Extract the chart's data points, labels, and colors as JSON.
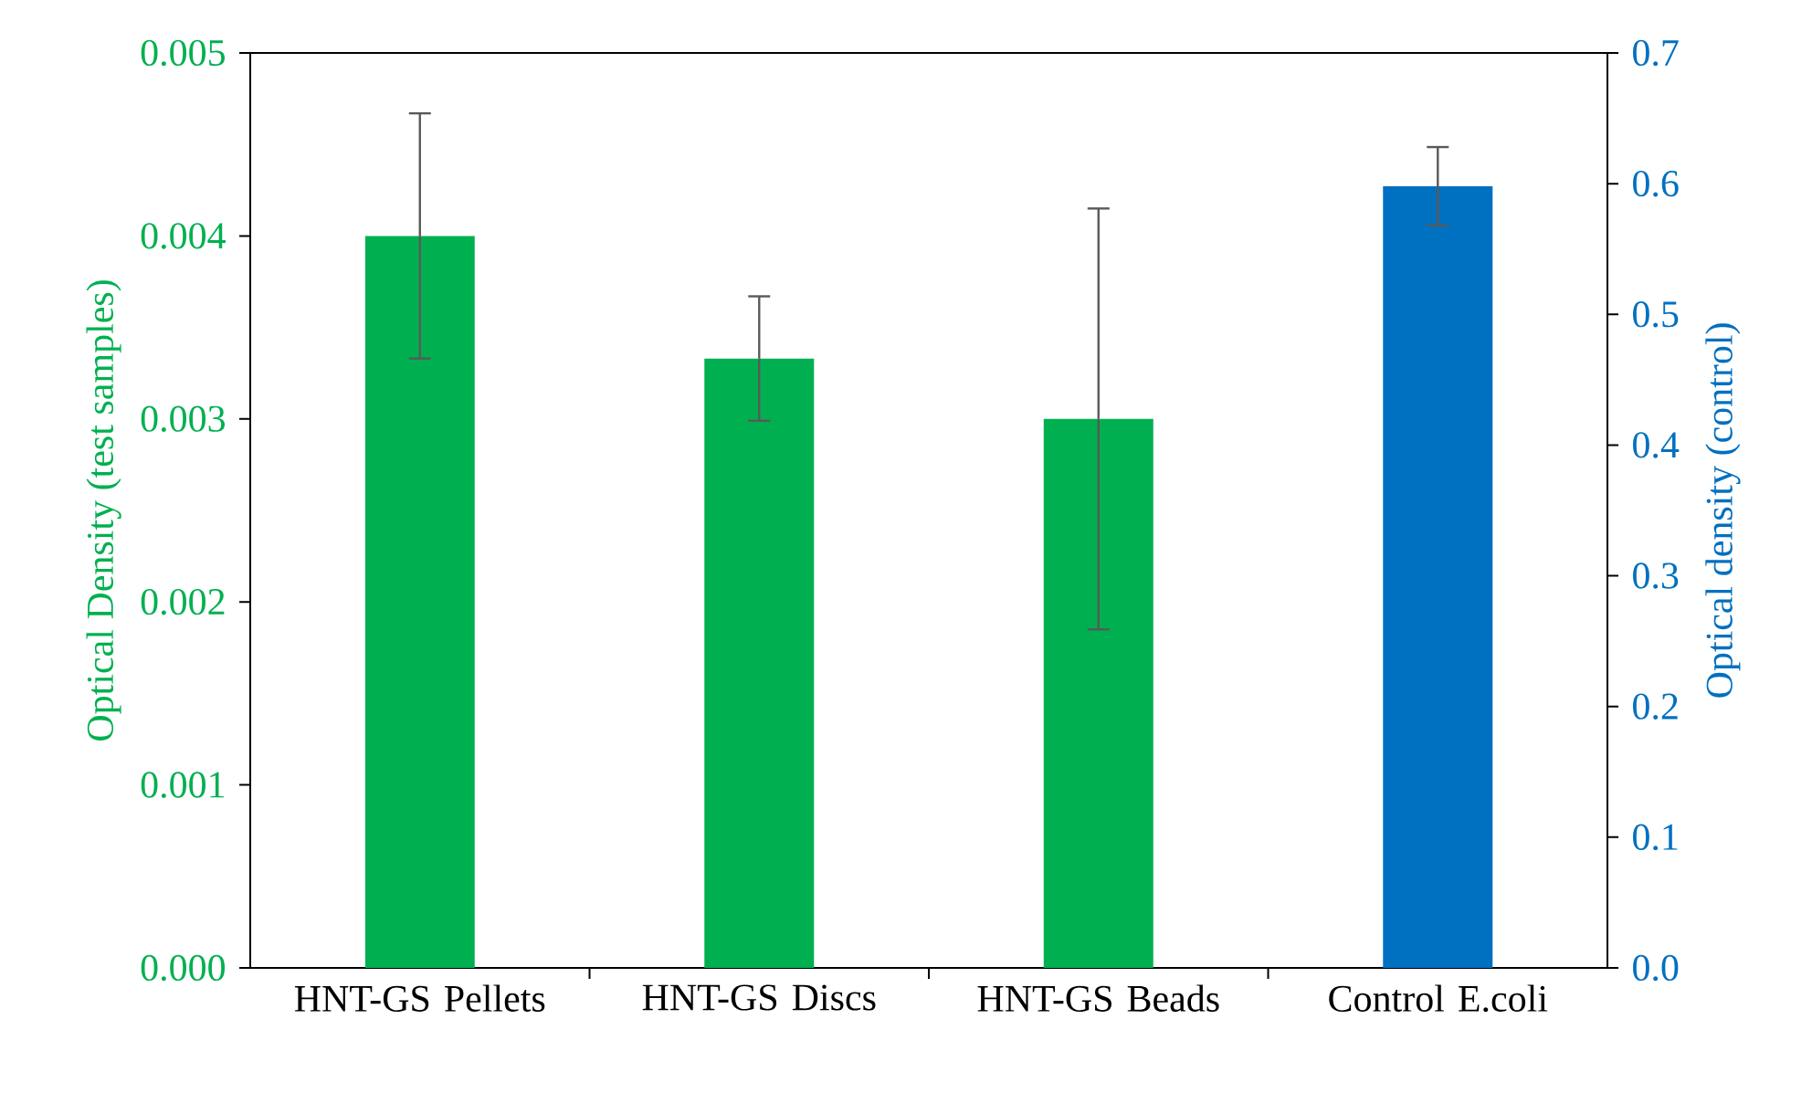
{
  "chart_data": {
    "type": "bar",
    "ylabel": "Optical Density (test samples)",
    "y2label": "Optical density (control)",
    "categories": [
      "HNT-GS Pellets",
      "HNT-GS Discs",
      "HNT-GS Beads",
      "Control E.coli"
    ],
    "series": [
      {
        "color": "#00b050",
        "values": [
          0.004,
          0.00333,
          0.003,
          null
        ],
        "errors": [
          0.00067,
          0.00034,
          0.00115,
          null
        ]
      },
      {
        "color": "#0070c0",
        "axis": "y2",
        "values": [
          null,
          null,
          null,
          0.598
        ],
        "errors": [
          null,
          null,
          null,
          0.03
        ]
      }
    ],
    "ylim": [
      0,
      0.005
    ],
    "yticks": [
      {
        "value": 0,
        "label": "0.000"
      },
      {
        "value": 0.001,
        "label": "0.001"
      },
      {
        "value": 0.002,
        "label": "0.002"
      },
      {
        "value": 0.003,
        "label": "0.003"
      },
      {
        "value": 0.004,
        "label": "0.004"
      },
      {
        "value": 0.005,
        "label": "0.005"
      }
    ],
    "y2lim": [
      0,
      0.7
    ],
    "y2ticks": [
      {
        "value": 0,
        "label": "0.0"
      },
      {
        "value": 0.1,
        "label": "0.1"
      },
      {
        "value": 0.2,
        "label": "0.2"
      },
      {
        "value": 0.3,
        "label": "0.3"
      },
      {
        "value": 0.4,
        "label": "0.4"
      },
      {
        "value": 0.5,
        "label": "0.5"
      },
      {
        "value": 0.6,
        "label": "0.6"
      },
      {
        "value": 0.7,
        "label": "0.7"
      }
    ]
  }
}
